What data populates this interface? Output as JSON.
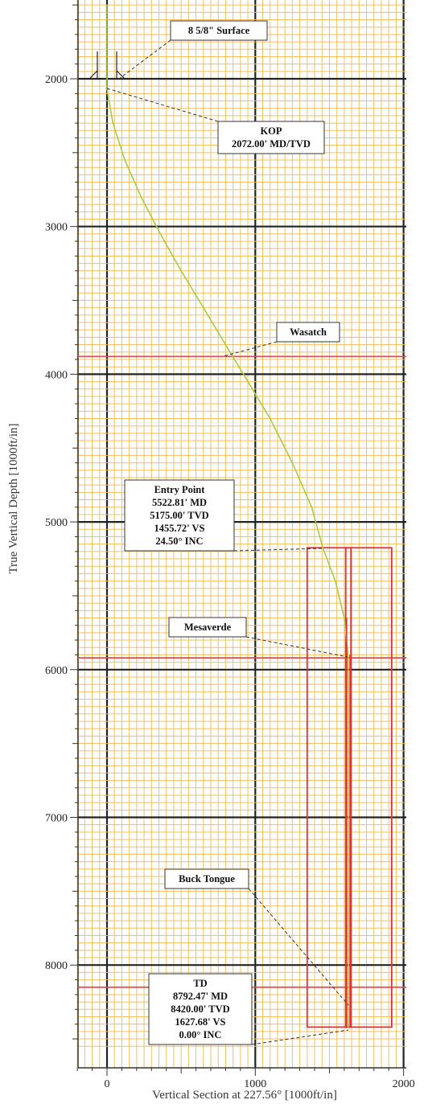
{
  "chart_data": {
    "type": "line",
    "title": "",
    "xlabel": "Vertical Section at 227.56° [1000ft/in]",
    "ylabel": "True Vertical Depth [1000ft/in]",
    "xlim": [
      -200,
      2000
    ],
    "ylim": [
      8570,
      1500
    ],
    "y_inverted": true,
    "grid": true,
    "x_ticks": [
      0,
      1000,
      2000
    ],
    "y_ticks": [
      2000,
      3000,
      4000,
      5000,
      6000,
      7000,
      8000
    ],
    "colors": {
      "grid_minor": "#f0c060",
      "grid_major": "#222222",
      "path": "#a8cc40",
      "formation": "#e84848",
      "target": "#e83030",
      "annotation_line": "#333333"
    },
    "series": [
      {
        "x": [
          0,
          0,
          40,
          120,
          230,
          360,
          500,
          650,
          800,
          950,
          1100,
          1250,
          1380,
          1456,
          1540,
          1600,
          1625,
          1627.68,
          1627.68
        ],
        "y": [
          1500,
          2072,
          2300,
          2550,
          2800,
          3050,
          3300,
          3550,
          3800,
          4050,
          4300,
          4600,
          4900,
          5175,
          5400,
          5650,
          5900,
          6100,
          8420
        ]
      }
    ],
    "formations": [
      {
        "name": "Wasatch",
        "tvd": 3880
      },
      {
        "name": "Mesaverde",
        "tvd": 5920
      },
      {
        "name": "Buck Tongue",
        "tvd": 8150
      }
    ],
    "targets": [
      {
        "x": [
          1350,
          1920
        ],
        "y": [
          5175,
          8420
        ]
      },
      {
        "x": [
          1610,
          1645
        ],
        "y": [
          5175,
          8420
        ]
      }
    ],
    "casing": {
      "x": 0,
      "tvd": 2000
    },
    "annotations": [
      {
        "lines": [
          "8 5/8\" Surface"
        ],
        "x": 60,
        "y": 2000
      },
      {
        "lines": [
          "KOP",
          "2072.00' MD/TVD"
        ],
        "x": 0,
        "y": 2072
      },
      {
        "lines": [
          "Wasatch"
        ],
        "x": 780,
        "y": 3880
      },
      {
        "lines": [
          "Entry Point",
          "5522.81' MD",
          "5175.00' TVD",
          "1455.72' VS",
          "24.50° INC"
        ],
        "x": 1456,
        "y": 5175
      },
      {
        "lines": [
          "Mesaverde"
        ],
        "x": 1620,
        "y": 5920
      },
      {
        "lines": [
          "Buck Tongue"
        ],
        "x": 1627.68,
        "y": 8150
      },
      {
        "lines": [
          "TD",
          "8792.47' MD",
          "8420.00' TVD",
          "1627.68' VS",
          "0.00° INC"
        ],
        "x": 1627.68,
        "y": 8420
      }
    ]
  }
}
